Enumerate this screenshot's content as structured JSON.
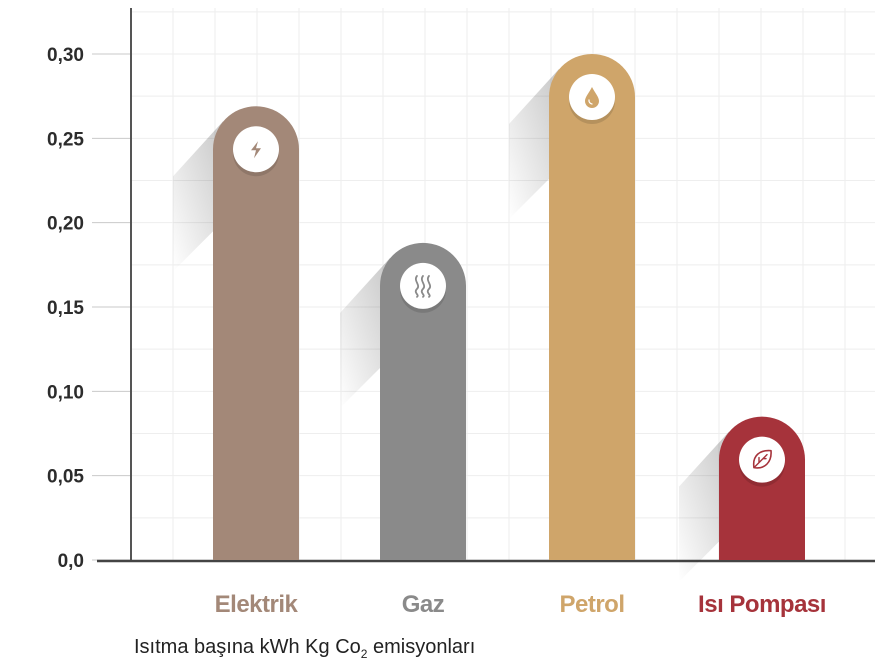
{
  "chart_data": {
    "type": "bar",
    "categories": [
      "Elektrik",
      "Gaz",
      "Petrol",
      "Isı Pompası"
    ],
    "values": [
      0.269,
      0.188,
      0.3,
      0.085
    ],
    "ylim": [
      0,
      0.3
    ],
    "yticks": [
      {
        "value": 0,
        "label": "0,0"
      },
      {
        "value": 0.05,
        "label": "0,05"
      },
      {
        "value": 0.1,
        "label": "0,10"
      },
      {
        "value": 0.15,
        "label": "0,15"
      },
      {
        "value": 0.2,
        "label": "0,20"
      },
      {
        "value": 0.25,
        "label": "0,25"
      },
      {
        "value": 0.3,
        "label": "0,30"
      }
    ],
    "colors": [
      "#a38878",
      "#8a8a8a",
      "#cfa56a",
      "#a6333b"
    ],
    "label_colors": [
      "#a38878",
      "#8a8a8a",
      "#cfa56a",
      "#a6333b"
    ],
    "icons": [
      "lightning-icon",
      "heat-waves-icon",
      "oil-drop-icon",
      "leaf-icon"
    ],
    "grid": true,
    "caption": {
      "before": "Isıtma başına kWh Kg Co",
      "sub": "2",
      "after": " emisyonları"
    }
  }
}
